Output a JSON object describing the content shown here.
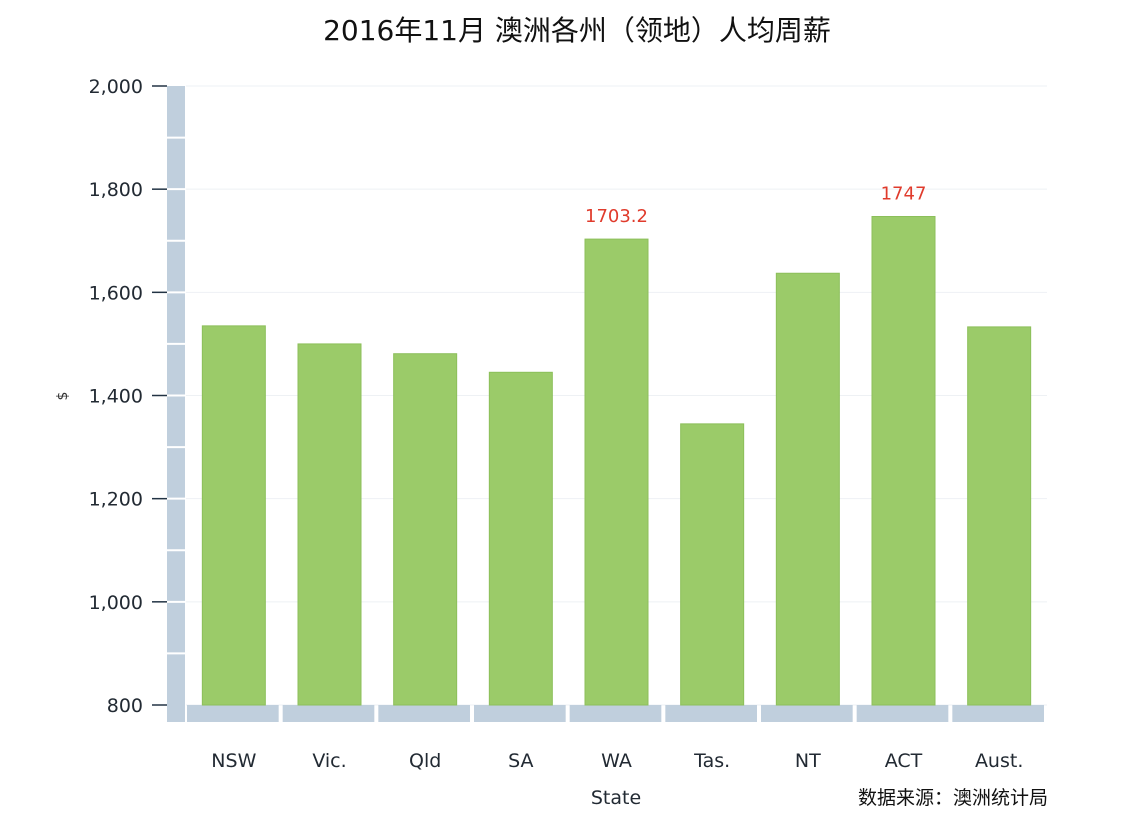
{
  "chart_data": {
    "type": "bar",
    "title": "2016年11月 澳洲各州（领地）人均周薪",
    "xlabel": "State",
    "ylabel": "$",
    "source": "数据来源：澳洲统计局",
    "categories": [
      "NSW",
      "Vic.",
      "Qld",
      "SA",
      "WA",
      "Tas.",
      "NT",
      "ACT",
      "Aust."
    ],
    "values": [
      1535,
      1500,
      1481,
      1445,
      1703.2,
      1345,
      1637,
      1747,
      1533
    ],
    "data_labels": [
      {
        "index": 4,
        "text": "1703.2"
      },
      {
        "index": 7,
        "text": "1747"
      }
    ],
    "ylim": [
      800,
      2000
    ],
    "yticks": [
      800,
      1000,
      1200,
      1400,
      1600,
      1800,
      2000
    ],
    "ytick_labels": [
      "800",
      "1,000",
      "1,200",
      "1,400",
      "1,600",
      "1,800",
      "2,000"
    ],
    "grid": true,
    "legend": false,
    "colors": {
      "bar": "#9bcb69",
      "bar_edge": "#8cbf5a",
      "axis_band": "#c0cfdd",
      "grid": "#eef1f4",
      "data_label": "#e03b2c"
    }
  }
}
